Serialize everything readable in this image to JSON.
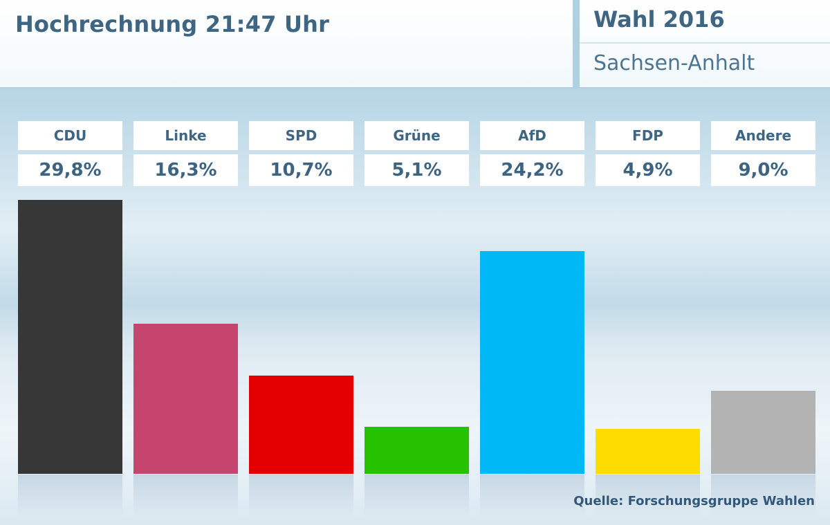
{
  "header": {
    "title": "Hochrechnung 21:47 Uhr",
    "election_title": "Wahl 2016",
    "region": "Sachsen-Anhalt"
  },
  "source": "Quelle: Forschungsgruppe Wahlen",
  "chart_data": {
    "type": "bar",
    "title": "Hochrechnung 21:47 Uhr",
    "xlabel": "",
    "ylabel": "",
    "ylim": [
      0,
      29.8
    ],
    "grid": false,
    "categories": [
      "CDU",
      "Linke",
      "SPD",
      "Grüne",
      "AfD",
      "FDP",
      "Andere"
    ],
    "values": [
      29.8,
      16.3,
      10.7,
      5.1,
      24.2,
      4.9,
      9.0
    ],
    "value_labels": [
      "29,8%",
      "16,3%",
      "10,7%",
      "5,1%",
      "24,2%",
      "4,9%",
      "9,0%"
    ],
    "colors": [
      "#373737",
      "#c6456e",
      "#e40000",
      "#26c200",
      "#00b8f5",
      "#ffdc00",
      "#b3b3b3"
    ]
  }
}
